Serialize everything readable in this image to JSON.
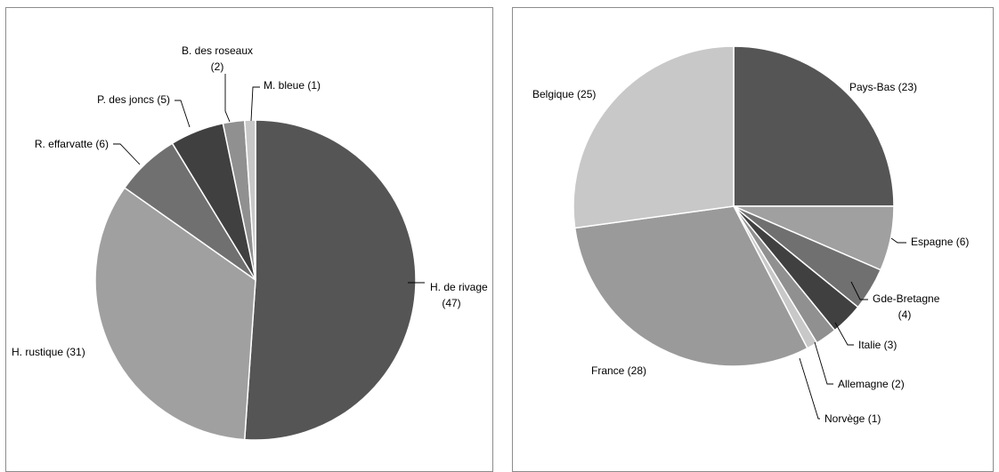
{
  "chart_data": [
    {
      "type": "pie",
      "title": "",
      "slices": [
        {
          "label": "H. de rivage",
          "value": 47,
          "display": "(47)",
          "color": "#555555"
        },
        {
          "label": "H. rustique",
          "value": 31,
          "display": "(31)",
          "color": "#a0a0a0"
        },
        {
          "label": "R. effarvatte",
          "value": 6,
          "display": "(6)",
          "color": "#707070"
        },
        {
          "label": "P. des joncs",
          "value": 5,
          "display": "(5)",
          "color": "#404040"
        },
        {
          "label": "B. des roseaux",
          "value": 2,
          "display": "(2)",
          "color": "#909090"
        },
        {
          "label": "M. bleue",
          "value": 1,
          "display": "(1)",
          "color": "#c8c8c8"
        }
      ]
    },
    {
      "type": "pie",
      "title": "",
      "slices": [
        {
          "label": "Pays-Bas",
          "value": 23,
          "display": "(23)",
          "color": "#555555"
        },
        {
          "label": "Espagne",
          "value": 6,
          "display": "(6)",
          "color": "#a0a0a0"
        },
        {
          "label": "Gde-Bretagne",
          "value": 4,
          "display": "(4)",
          "color": "#707070"
        },
        {
          "label": "Italie",
          "value": 3,
          "display": "(3)",
          "color": "#404040"
        },
        {
          "label": "Allemagne",
          "value": 2,
          "display": "(2)",
          "color": "#909090"
        },
        {
          "label": "Norvège",
          "value": 1,
          "display": "(1)",
          "color": "#c8c8c8"
        },
        {
          "label": "France",
          "value": 28,
          "display": "(28)",
          "color": "#9a9a9a"
        },
        {
          "label": "Belgique",
          "value": 25,
          "display": "(25)",
          "color": "#c8c8c8"
        }
      ]
    }
  ]
}
